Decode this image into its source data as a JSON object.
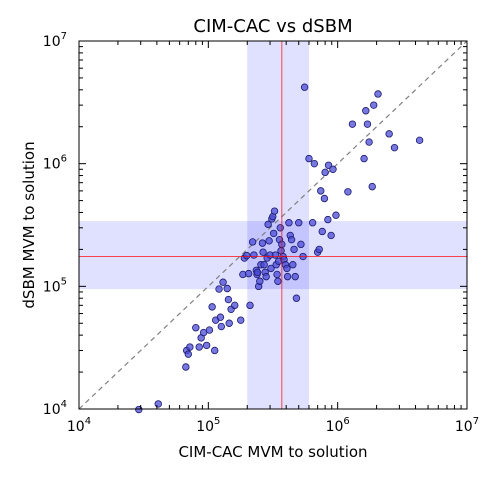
{
  "chart_data": {
    "type": "scatter",
    "title": "CIM-CAC vs dSBM",
    "xlabel": "CIM-CAC MVM to solution",
    "ylabel": "dSBM MVM to solution",
    "xscale": "log",
    "yscale": "log",
    "xlim": [
      10000,
      10000000
    ],
    "ylim": [
      10000,
      10000000
    ],
    "grid": false,
    "x_ticks": [
      {
        "base": "10",
        "exp": "4"
      },
      {
        "base": "10",
        "exp": "5"
      },
      {
        "base": "10",
        "exp": "6"
      },
      {
        "base": "10",
        "exp": "7"
      }
    ],
    "y_ticks": [
      {
        "base": "10",
        "exp": "4"
      },
      {
        "base": "10",
        "exp": "5"
      },
      {
        "base": "10",
        "exp": "6"
      },
      {
        "base": "10",
        "exp": "7"
      }
    ],
    "reference_line": {
      "style": "dashed",
      "color": "#808080",
      "from": [
        10000,
        10000
      ],
      "to": [
        10000000,
        10000000
      ]
    },
    "x_band": {
      "center": 370000,
      "low": 200000,
      "high": 600000,
      "color": "#0000ff",
      "line_color": "#ff0000"
    },
    "y_band": {
      "center": 175000,
      "low": 95000,
      "high": 340000,
      "color": "#0000ff",
      "line_color": "#ff0000"
    },
    "marker_color": "#4b4bd7",
    "points": [
      [
        29000,
        9900
      ],
      [
        41000,
        11000
      ],
      [
        67000,
        22000
      ],
      [
        68000,
        30000
      ],
      [
        70000,
        28000
      ],
      [
        72000,
        32000
      ],
      [
        80000,
        46000
      ],
      [
        85000,
        32000
      ],
      [
        88000,
        38000
      ],
      [
        92000,
        42000
      ],
      [
        97000,
        33000
      ],
      [
        102000,
        44000
      ],
      [
        107000,
        68000
      ],
      [
        112000,
        30000
      ],
      [
        114000,
        53000
      ],
      [
        121000,
        95000
      ],
      [
        124000,
        56000
      ],
      [
        126000,
        47000
      ],
      [
        130000,
        108000
      ],
      [
        140000,
        96000
      ],
      [
        143000,
        78000
      ],
      [
        145000,
        50000
      ],
      [
        150000,
        65000
      ],
      [
        160000,
        70000
      ],
      [
        178000,
        53000
      ],
      [
        185000,
        125000
      ],
      [
        190000,
        170000
      ],
      [
        198000,
        178000
      ],
      [
        205000,
        127000
      ],
      [
        210000,
        70000
      ],
      [
        220000,
        230000
      ],
      [
        225000,
        180000
      ],
      [
        235000,
        135000
      ],
      [
        238000,
        125000
      ],
      [
        240000,
        130000
      ],
      [
        245000,
        100000
      ],
      [
        250000,
        110000
      ],
      [
        255000,
        150000
      ],
      [
        262000,
        225000
      ],
      [
        265000,
        190000
      ],
      [
        270000,
        150000
      ],
      [
        275000,
        130000
      ],
      [
        280000,
        120000
      ],
      [
        285000,
        170000
      ],
      [
        290000,
        320000
      ],
      [
        295000,
        235000
      ],
      [
        300000,
        180000
      ],
      [
        305000,
        140000
      ],
      [
        310000,
        355000
      ],
      [
        315000,
        370000
      ],
      [
        320000,
        270000
      ],
      [
        325000,
        410000
      ],
      [
        330000,
        180000
      ],
      [
        335000,
        150000
      ],
      [
        340000,
        125000
      ],
      [
        345000,
        110000
      ],
      [
        350000,
        160000
      ],
      [
        355000,
        240000
      ],
      [
        360000,
        300000
      ],
      [
        365000,
        195000
      ],
      [
        370000,
        220000
      ],
      [
        378000,
        175000
      ],
      [
        385000,
        165000
      ],
      [
        395000,
        150000
      ],
      [
        405000,
        140000
      ],
      [
        410000,
        120000
      ],
      [
        420000,
        330000
      ],
      [
        430000,
        260000
      ],
      [
        440000,
        240000
      ],
      [
        450000,
        150000
      ],
      [
        460000,
        200000
      ],
      [
        470000,
        120000
      ],
      [
        480000,
        80000
      ],
      [
        500000,
        330000
      ],
      [
        520000,
        220000
      ],
      [
        540000,
        175000
      ],
      [
        555000,
        4200000
      ],
      [
        600000,
        1100000
      ],
      [
        640000,
        330000
      ],
      [
        660000,
        1000000
      ],
      [
        700000,
        190000
      ],
      [
        720000,
        200000
      ],
      [
        740000,
        600000
      ],
      [
        760000,
        280000
      ],
      [
        790000,
        520000
      ],
      [
        800000,
        850000
      ],
      [
        840000,
        350000
      ],
      [
        850000,
        970000
      ],
      [
        890000,
        260000
      ],
      [
        920000,
        900000
      ],
      [
        970000,
        380000
      ],
      [
        1200000,
        590000
      ],
      [
        1300000,
        2100000
      ],
      [
        1600000,
        1100000
      ],
      [
        1650000,
        2700000
      ],
      [
        1700000,
        2100000
      ],
      [
        1750000,
        1500000
      ],
      [
        1850000,
        650000
      ],
      [
        1900000,
        3000000
      ],
      [
        2050000,
        3700000
      ],
      [
        2500000,
        1750000
      ],
      [
        2750000,
        1350000
      ],
      [
        4300000,
        1550000
      ]
    ]
  }
}
